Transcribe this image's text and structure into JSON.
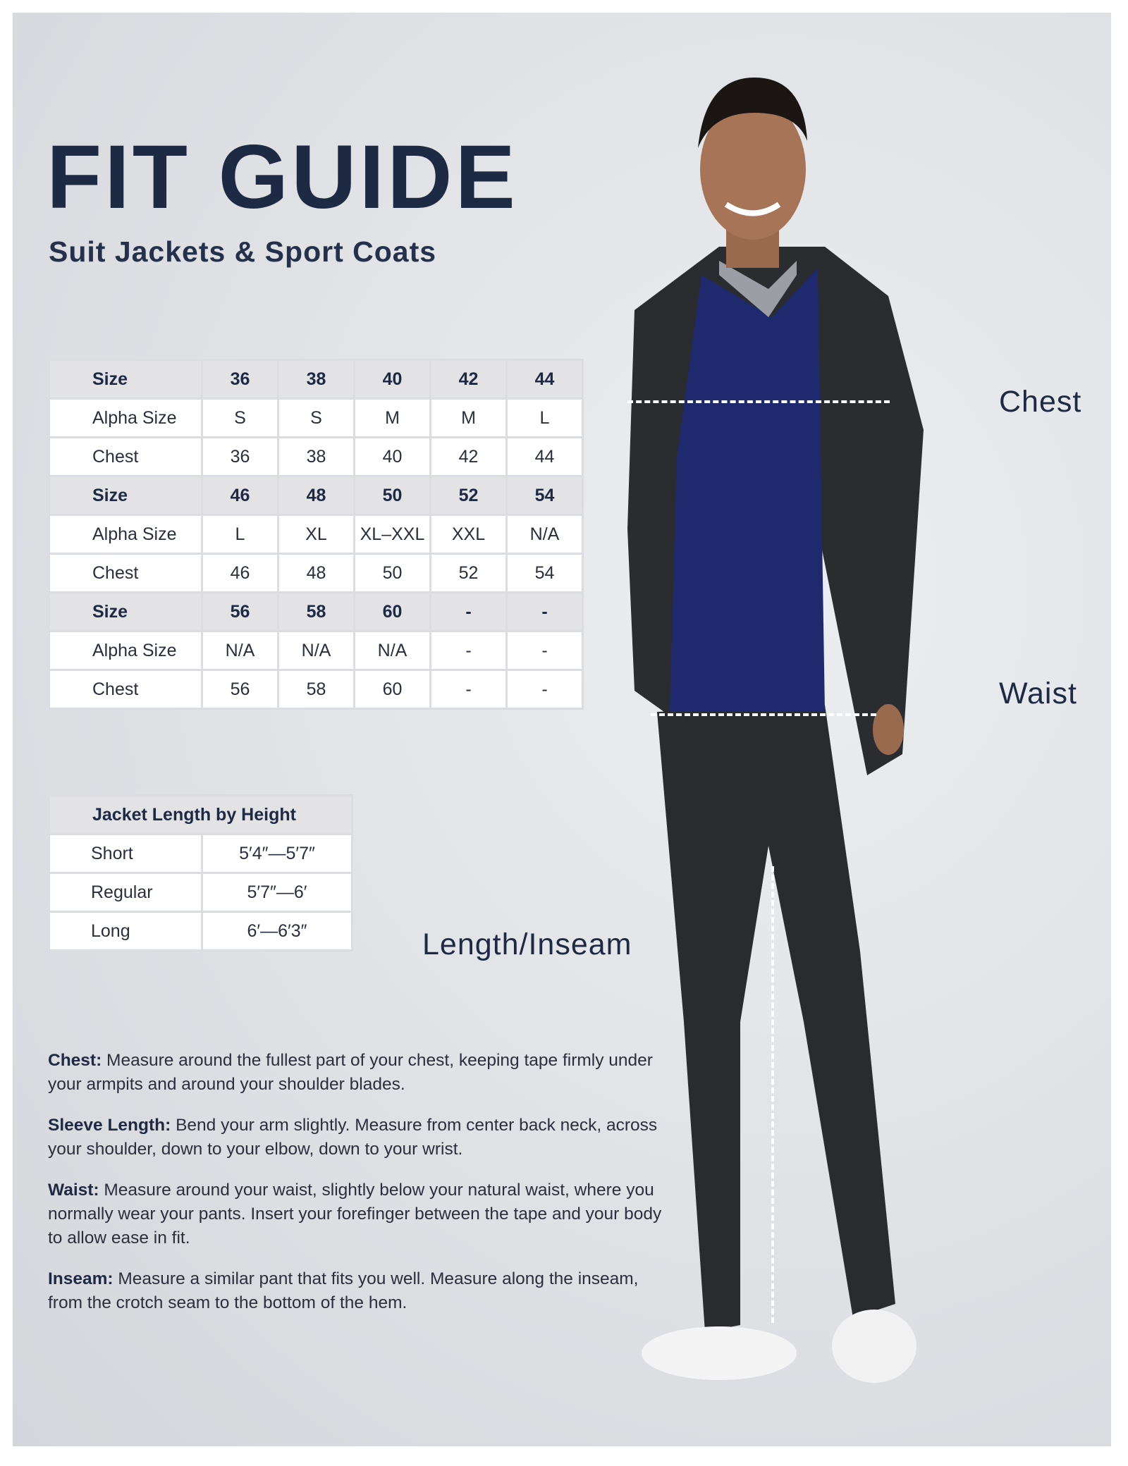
{
  "header": {
    "title": "FIT GUIDE",
    "subtitle": "Suit Jackets & Sport Coats"
  },
  "size_table": {
    "groups": [
      {
        "size_label": "Size",
        "sizes": [
          "36",
          "38",
          "40",
          "42",
          "44"
        ],
        "alpha_label": "Alpha Size",
        "alpha": [
          "S",
          "S",
          "M",
          "M",
          "L"
        ],
        "chest_label": "Chest",
        "chest": [
          "36",
          "38",
          "40",
          "42",
          "44"
        ]
      },
      {
        "size_label": "Size",
        "sizes": [
          "46",
          "48",
          "50",
          "52",
          "54"
        ],
        "alpha_label": "Alpha Size",
        "alpha": [
          "L",
          "XL",
          "XL–XXL",
          "XXL",
          "N/A"
        ],
        "chest_label": "Chest",
        "chest": [
          "46",
          "48",
          "50",
          "52",
          "54"
        ]
      },
      {
        "size_label": "Size",
        "sizes": [
          "56",
          "58",
          "60",
          "-",
          "-"
        ],
        "alpha_label": "Alpha Size",
        "alpha": [
          "N/A",
          "N/A",
          "N/A",
          "-",
          "-"
        ],
        "chest_label": "Chest",
        "chest": [
          "56",
          "58",
          "60",
          "-",
          "-"
        ]
      }
    ]
  },
  "length_table": {
    "title": "Jacket Length by Height",
    "rows": [
      {
        "label": "Short",
        "value": "5′4″—5′7″"
      },
      {
        "label": "Regular",
        "value": "5′7″—6′"
      },
      {
        "label": "Long",
        "value": "6′—6′3″"
      }
    ]
  },
  "measure_labels": {
    "chest": "Chest",
    "waist": "Waist",
    "inseam": "Length/Inseam"
  },
  "notes": [
    {
      "term": "Chest:",
      "text": " Measure around the fullest part of your chest, keeping tape firmly under your armpits and around your shoulder blades."
    },
    {
      "term": "Sleeve Length:",
      "text": " Bend your arm slightly. Measure from center back neck, across your shoulder, down to your elbow, down to your wrist."
    },
    {
      "term": "Waist:",
      "text": " Measure around your waist, slightly below your natural waist, where you normally wear your pants. Insert your forefinger between the tape and your body to allow ease in fit."
    },
    {
      "term": "Inseam:",
      "text": " Measure a similar pant that fits you well. Measure along the inseam, from the crotch seam to the bottom of the hem."
    }
  ],
  "colors": {
    "navy": "#1e2a44",
    "background": "#dfe1e5",
    "header_row": "#e3e3e6",
    "jacket": "#2b2c30",
    "sweater": "#1f2a6e"
  }
}
